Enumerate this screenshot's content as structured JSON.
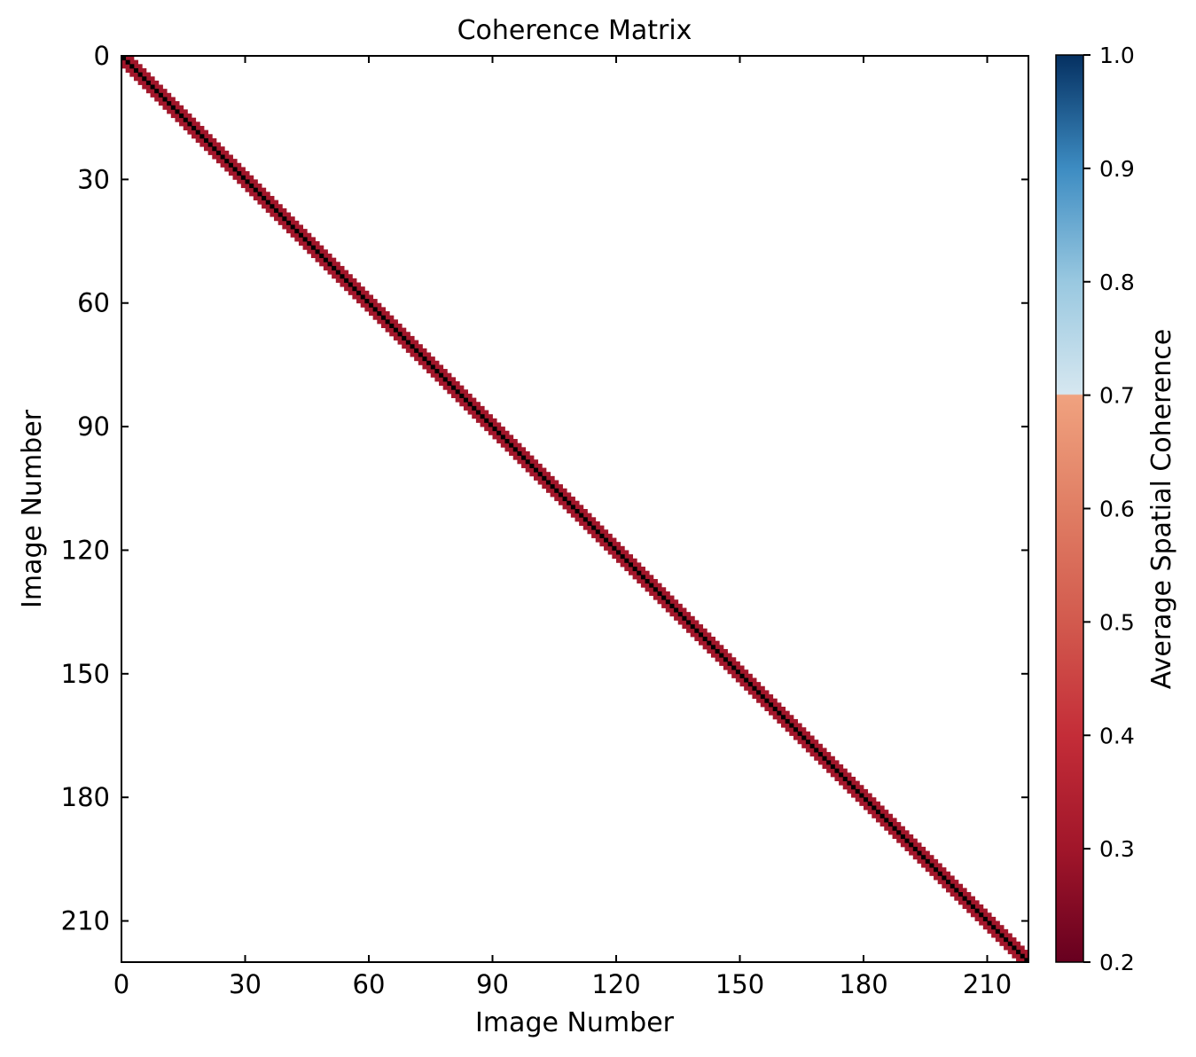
{
  "chart_data": {
    "type": "heatmap",
    "title": "Coherence Matrix",
    "xlabel": "Image Number",
    "ylabel": "Image Number",
    "n_images": 220,
    "xlim": [
      0,
      220
    ],
    "ylim": [
      220,
      0
    ],
    "x_ticks": [
      0,
      30,
      60,
      90,
      120,
      150,
      180,
      210
    ],
    "y_ticks": [
      0,
      30,
      60,
      90,
      120,
      150,
      180,
      210
    ],
    "bands": [
      {
        "offset": 0,
        "value": 0.2,
        "color": "#000000"
      },
      {
        "offset": 1,
        "value": 0.3,
        "color": "#a1162a"
      },
      {
        "offset": 2,
        "value": 0.3,
        "color": "#a1162a"
      }
    ],
    "background_value": null,
    "colorbar": {
      "label": "Average Spatial Coherence",
      "min": 0.2,
      "max": 1.0,
      "ticks": [
        "0.2",
        "0.3",
        "0.4",
        "0.5",
        "0.6",
        "0.7",
        "0.8",
        "0.9",
        "1.0"
      ],
      "stops": [
        {
          "value": 0.2,
          "color": "#67001f"
        },
        {
          "value": 0.3,
          "color": "#a1162a"
        },
        {
          "value": 0.4,
          "color": "#c42d38"
        },
        {
          "value": 0.5,
          "color": "#d25a4e"
        },
        {
          "value": 0.6,
          "color": "#e07e64"
        },
        {
          "value": 0.7,
          "color": "#f0a27f"
        },
        {
          "value": 0.701,
          "color": "#d6e7f0"
        },
        {
          "value": 0.8,
          "color": "#99c8e0"
        },
        {
          "value": 0.9,
          "color": "#3d8cc2"
        },
        {
          "value": 1.0,
          "color": "#053061"
        }
      ]
    },
    "grid": false
  }
}
